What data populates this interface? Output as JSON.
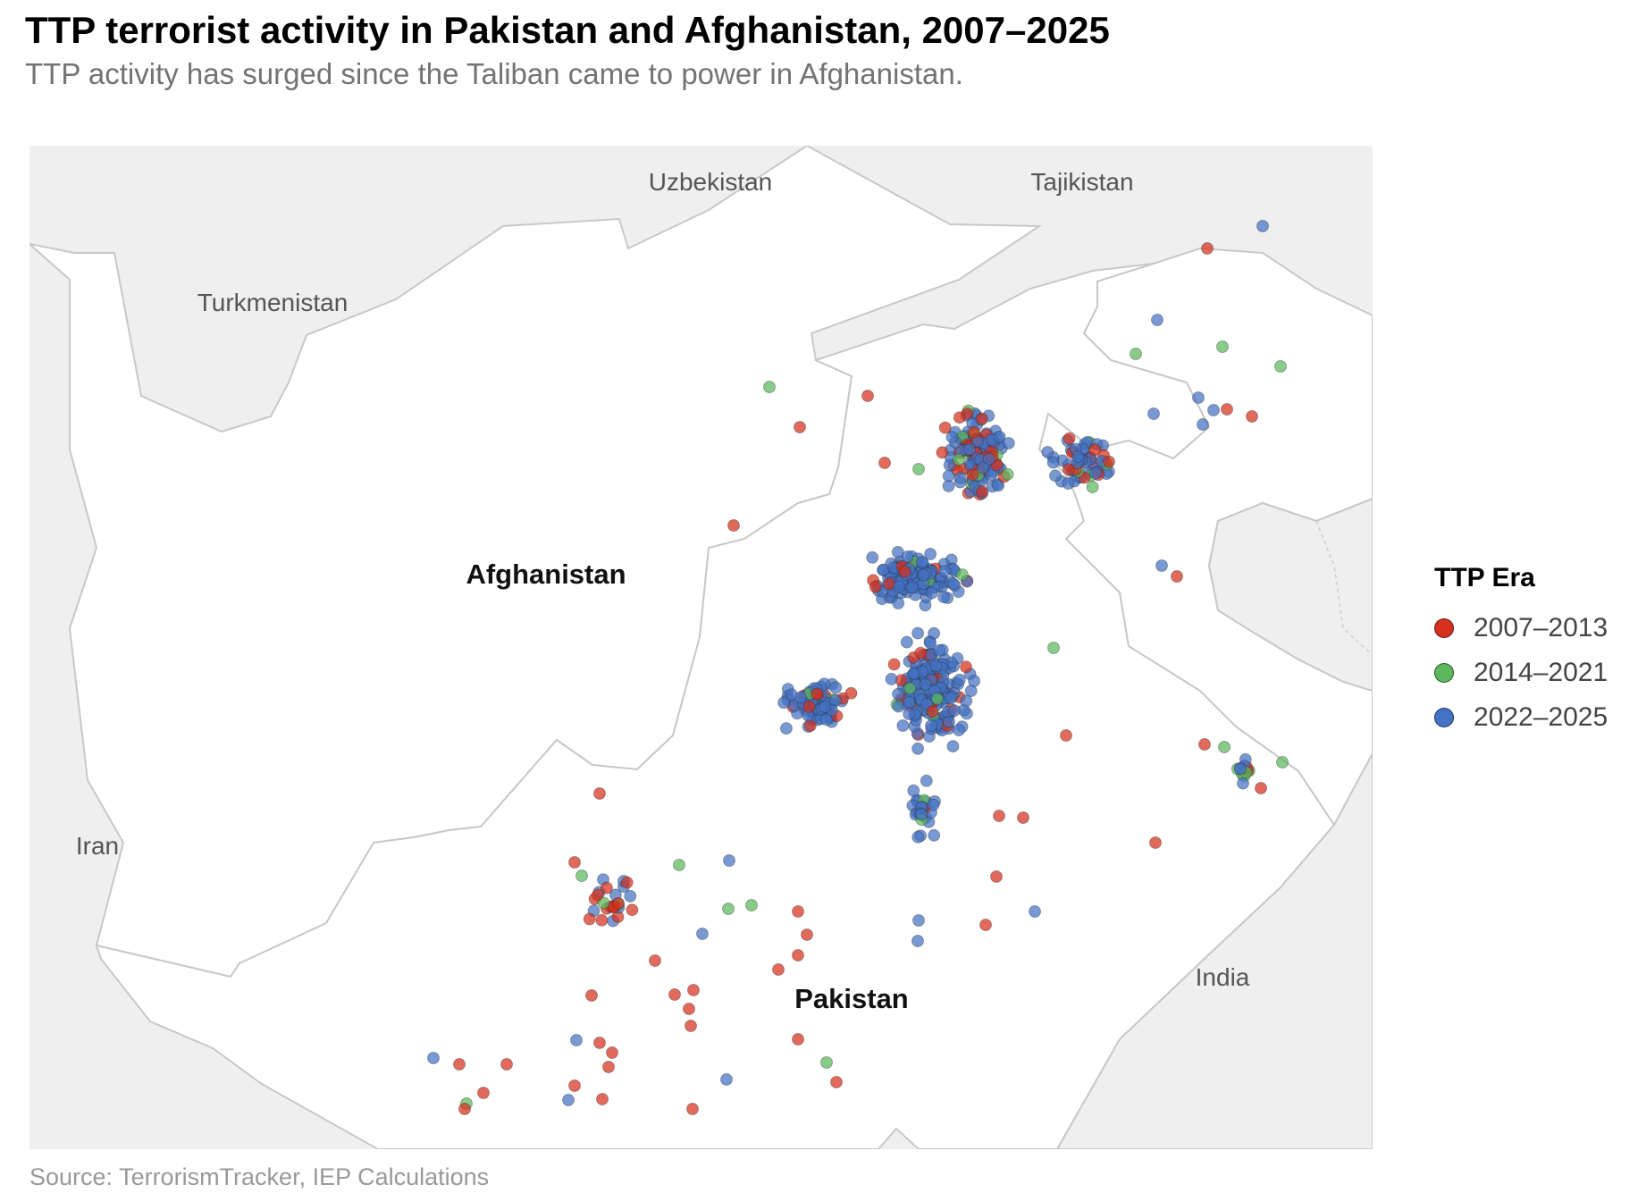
{
  "title": "TTP terrorist activity in Pakistan and Afghanistan, 2007–2025",
  "subtitle": "TTP activity has surged since the Taliban came to power in Afghanistan.",
  "source": "Source: TerrorismTracker, IEP Calculations",
  "map": {
    "countries": {
      "uzbekistan": "Uzbekistan",
      "tajikistan": "Tajikistan",
      "turkmenistan": "Turkmenistan",
      "afghanistan": "Afghanistan",
      "iran": "Iran",
      "pakistan": "Pakistan",
      "india": "India"
    },
    "colors": {
      "land_other": "#efefef",
      "land_focus": "#ffffff",
      "border": "#c8c8c8"
    }
  },
  "legend": {
    "title": "TTP Era",
    "items": [
      {
        "label": "2007–2013",
        "color": "#d7301f"
      },
      {
        "label": "2014–2021",
        "color": "#5cb85c"
      },
      {
        "label": "2022–2025",
        "color": "#4472c4"
      }
    ]
  }
}
